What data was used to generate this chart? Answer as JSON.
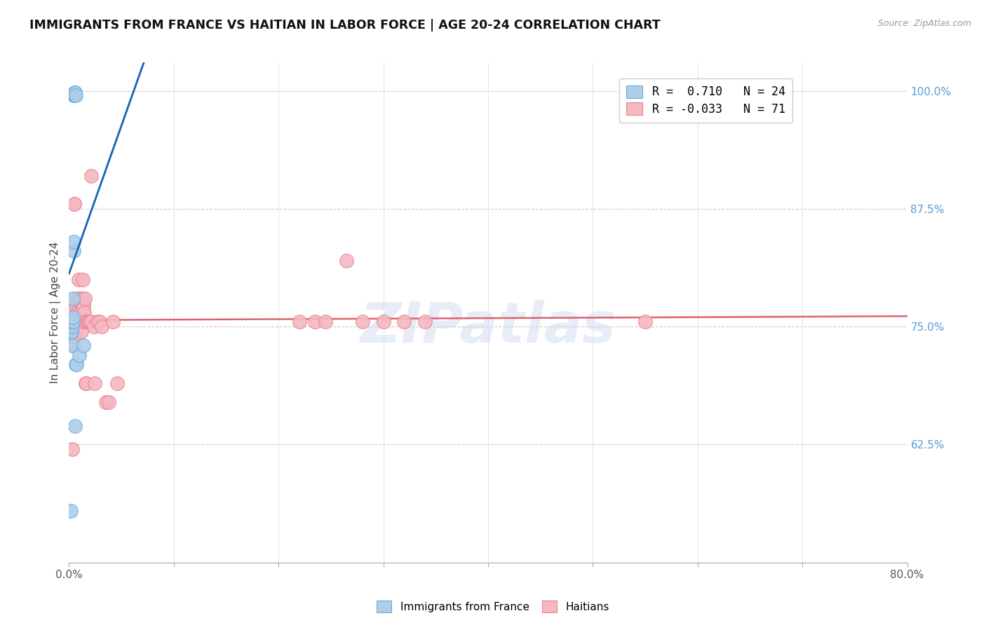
{
  "title": "IMMIGRANTS FROM FRANCE VS HAITIAN IN LABOR FORCE | AGE 20-24 CORRELATION CHART",
  "source": "Source: ZipAtlas.com",
  "ylabel": "In Labor Force | Age 20-24",
  "right_ytick_labels": [
    "62.5%",
    "75.0%",
    "87.5%",
    "100.0%"
  ],
  "right_yticks_pct": [
    62.5,
    75.0,
    87.5,
    100.0
  ],
  "legend_line1": "R =  0.710   N = 24",
  "legend_line2": "R = -0.033   N = 71",
  "france_color": "#aecde8",
  "haiti_color": "#f4b8c1",
  "france_edge": "#6aaed6",
  "haiti_edge": "#f08090",
  "trend_france_color": "#1464b4",
  "trend_haiti_color": "#e06070",
  "watermark": "ZIPatlas",
  "france_x": [
    0.18,
    0.22,
    0.26,
    0.3,
    0.32,
    0.34,
    0.36,
    0.38,
    0.4,
    0.42,
    0.44,
    0.46,
    0.48,
    0.5,
    0.52,
    0.54,
    0.56,
    0.58,
    0.6,
    0.62,
    0.64,
    0.7,
    1.0,
    1.4
  ],
  "france_y": [
    55.5,
    74.5,
    74.5,
    73.0,
    75.0,
    75.5,
    75.5,
    76.0,
    78.0,
    83.0,
    84.0,
    99.5,
    99.5,
    99.6,
    99.6,
    99.8,
    99.8,
    99.8,
    64.5,
    71.0,
    99.5,
    71.0,
    72.0,
    73.0
  ],
  "haiti_x": [
    0.08,
    0.14,
    0.2,
    0.22,
    0.24,
    0.26,
    0.28,
    0.3,
    0.32,
    0.34,
    0.36,
    0.38,
    0.4,
    0.42,
    0.44,
    0.46,
    0.48,
    0.5,
    0.52,
    0.54,
    0.56,
    0.58,
    0.6,
    0.64,
    0.68,
    0.72,
    0.76,
    0.8,
    0.84,
    0.88,
    0.92,
    0.96,
    1.0,
    1.04,
    1.08,
    1.12,
    1.16,
    1.2,
    1.24,
    1.28,
    1.32,
    1.36,
    1.4,
    1.44,
    1.48,
    1.52,
    1.58,
    1.66,
    1.74,
    1.82,
    1.96,
    2.1,
    2.14,
    2.4,
    2.44,
    2.7,
    2.9,
    3.1,
    3.5,
    3.8,
    4.2,
    4.6,
    22.0,
    23.5,
    24.5,
    26.5,
    28.0,
    30.0,
    32.0,
    34.0,
    55.0
  ],
  "haiti_y": [
    74.5,
    77.0,
    75.5,
    76.0,
    75.5,
    75.0,
    62.0,
    75.5,
    77.0,
    75.5,
    75.5,
    74.0,
    74.0,
    73.0,
    75.5,
    75.5,
    75.0,
    73.0,
    88.0,
    88.0,
    76.0,
    75.5,
    74.0,
    77.5,
    76.5,
    75.5,
    75.0,
    78.0,
    75.5,
    75.5,
    80.0,
    78.0,
    77.0,
    75.5,
    77.5,
    76.5,
    74.5,
    77.5,
    78.0,
    80.0,
    77.5,
    77.5,
    77.0,
    76.5,
    75.5,
    78.0,
    69.0,
    69.0,
    75.5,
    75.5,
    75.5,
    91.0,
    75.5,
    75.0,
    69.0,
    75.5,
    75.5,
    75.0,
    67.0,
    67.0,
    75.5,
    69.0,
    75.5,
    75.5,
    75.5,
    82.0,
    75.5,
    75.5,
    75.5,
    75.5,
    75.5
  ],
  "xmin": 0.0,
  "xmax": 80.0,
  "ymin": 50.0,
  "ymax": 103.0,
  "figsize": [
    14.06,
    8.92
  ],
  "dpi": 100
}
